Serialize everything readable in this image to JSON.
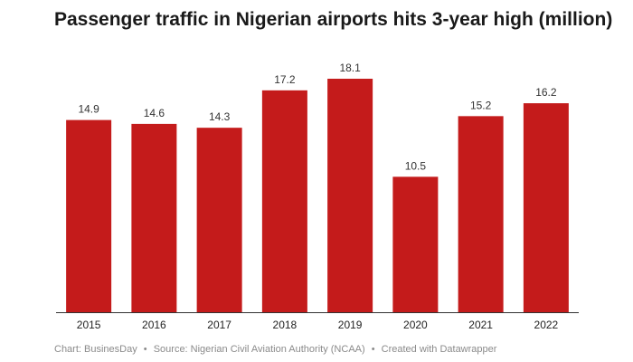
{
  "chart_data": {
    "type": "bar",
    "title": "Passenger traffic in Nigerian airports hits 3-year high (million)",
    "categories": [
      "2015",
      "2016",
      "2017",
      "2018",
      "2019",
      "2020",
      "2021",
      "2022"
    ],
    "values": [
      14.9,
      14.6,
      14.3,
      17.2,
      18.1,
      10.5,
      15.2,
      16.2
    ],
    "value_labels": [
      "14.9",
      "14.6",
      "14.3",
      "17.2",
      "18.1",
      "10.5",
      "15.2",
      "16.2"
    ],
    "xlabel": "",
    "ylabel": "",
    "ylim": [
      0,
      18.1
    ],
    "grid": false,
    "bar_color": "#c41b1b",
    "axis_color": "#333333"
  },
  "footer": {
    "chart_credit": "Chart: BusinesDay",
    "source": "Source: Nigerian Civil Aviation Authority (NCAA)",
    "created_with": "Created with Datawrapper",
    "separator": "•"
  }
}
